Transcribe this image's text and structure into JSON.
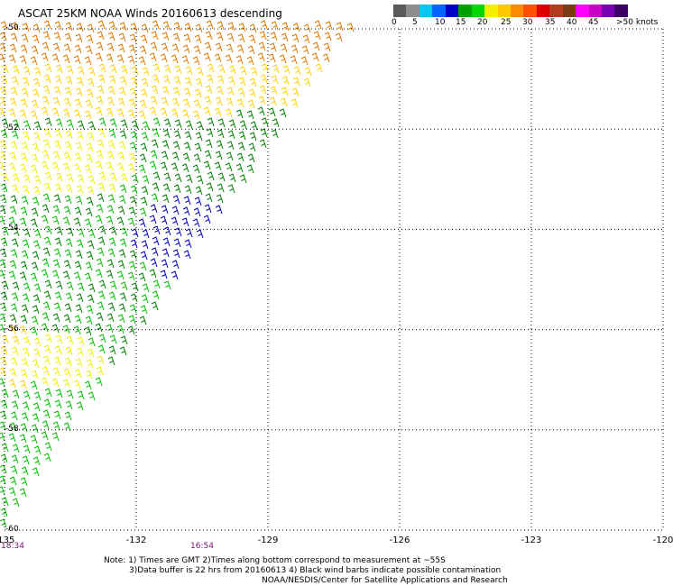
{
  "title": "ASCAT 25KM NOAA Winds 20160613 descending",
  "legend": {
    "colors": [
      "#5a5a5a",
      "#8c8c8c",
      "#00c8f0",
      "#0064ff",
      "#0000c8",
      "#00a000",
      "#00d800",
      "#f0f000",
      "#ffc800",
      "#ff8c00",
      "#ff5000",
      "#dc0000",
      "#b43c1e",
      "#7a3c14",
      "#ff00ff",
      "#c800c8",
      "#7800b4",
      "#3c0064"
    ],
    "labels": [
      "0",
      "5",
      "10",
      "15",
      "20",
      "25",
      "30",
      "35",
      "40",
      "45",
      ">50 knots"
    ]
  },
  "map_data": {
    "lon_range": [
      -135,
      -120
    ],
    "lat_range": [
      -60,
      -50
    ],
    "lon_ticks": [
      "-135",
      "-132",
      "-129",
      "-126",
      "-123",
      "-120"
    ],
    "lat_ticks": [
      "-50",
      "-52",
      "-54",
      "-56",
      "-58",
      "-60"
    ],
    "time_labels": [
      "18:34",
      "16:54"
    ],
    "time_label_lons": [
      -135,
      -130.5
    ],
    "wind_regions": [
      {
        "color": "#e07800",
        "speed_knots": 30
      },
      {
        "color": "#ffd200",
        "speed_knots": 25
      },
      {
        "color": "#f0f000",
        "speed_knots": 22
      },
      {
        "color": "#008000",
        "speed_knots": 17
      },
      {
        "color": "#00c000",
        "speed_knots": 15
      },
      {
        "color": "#0000c0",
        "speed_knots": 12
      }
    ]
  },
  "notes": {
    "line1": "Note: 1) Times are GMT 2)Times along bottom correspond to measurement at ~55S",
    "line2": "3)Data buffer is 22 hrs from 20160613 4) Black wind barbs indicate possible contamination",
    "line3": "NOAA/NESDIS/Center for Satellite Applications and Research"
  }
}
